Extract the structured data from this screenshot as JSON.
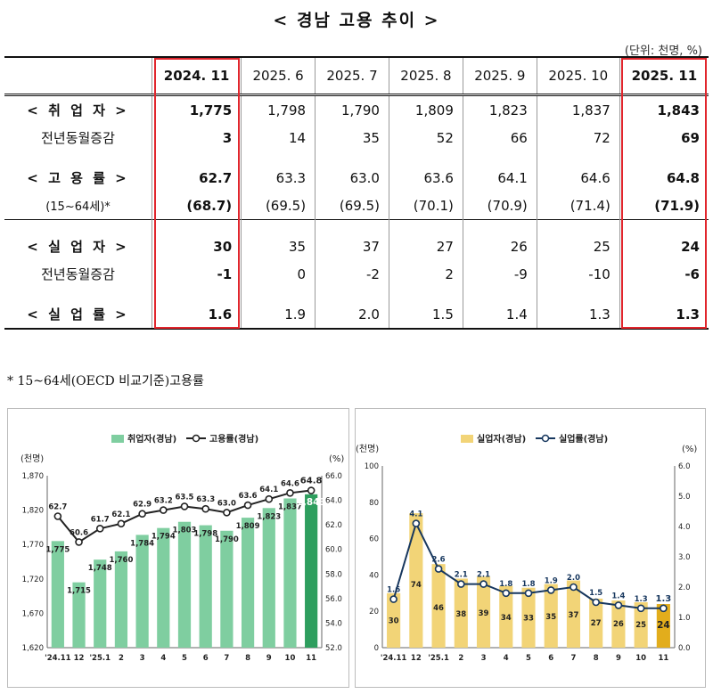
{
  "title": "< 경남 고용 추이 >",
  "unit": "(단위: 천명, %)",
  "table": {
    "columns": [
      "2024. 11",
      "2025. 6",
      "2025. 7",
      "2025. 8",
      "2025. 9",
      "2025. 10",
      "2025. 11"
    ],
    "rows": {
      "employed": {
        "label": "< 취 업 자 >",
        "values": [
          "1,775",
          "1,798",
          "1,790",
          "1,809",
          "1,823",
          "1,837",
          "1,843"
        ]
      },
      "employed_yoy": {
        "label": "전년동월증감",
        "values": [
          "3",
          "14",
          "35",
          "52",
          "66",
          "72",
          "69"
        ]
      },
      "emp_rate": {
        "label": "< 고 용 률 >",
        "values": [
          "62.7",
          "63.3",
          "63.0",
          "63.6",
          "64.1",
          "64.6",
          "64.8"
        ]
      },
      "oecd_rate": {
        "label": "(15~64세)*",
        "values": [
          "(68.7)",
          "(69.5)",
          "(69.5)",
          "(70.1)",
          "(70.9)",
          "(71.4)",
          "(71.9)"
        ]
      },
      "unemployed": {
        "label": "< 실 업 자 >",
        "values": [
          "30",
          "35",
          "37",
          "27",
          "26",
          "25",
          "24"
        ]
      },
      "unemployed_yoy": {
        "label": "전년동월증감",
        "values": [
          "-1",
          "0",
          "-2",
          "2",
          "-9",
          "-10",
          "-6"
        ]
      },
      "unemp_rate": {
        "label": "< 실 업 률 >",
        "values": [
          "1.6",
          "1.9",
          "2.0",
          "1.5",
          "1.4",
          "1.3",
          "1.3"
        ]
      }
    }
  },
  "footnote": "* 15~64세(OECD 비교기준)고용률",
  "colors": {
    "highlight": "#e1262d",
    "green_bar": "#7fcea0",
    "green_last": "#2e9e5e",
    "yellow_bar": "#f2d477",
    "yellow_last": "#e2ad1c",
    "line_dark": "#222222",
    "line_blue": "#17375e"
  },
  "chart_data": [
    {
      "type": "bar",
      "title": "",
      "legend": [
        "취업자(경남)",
        "고용률(경남)"
      ],
      "categories": [
        "'24.11",
        "12",
        "'25.1",
        "2",
        "3",
        "4",
        "5",
        "6",
        "7",
        "8",
        "9",
        "10",
        "11"
      ],
      "ylabel": "(천명)",
      "y2label": "(%)",
      "ylim": [
        1620,
        1870
      ],
      "yticks": [
        1620,
        1670,
        1720,
        1770,
        1820,
        1870
      ],
      "y2lim": [
        52.0,
        66.0
      ],
      "y2ticks": [
        52.0,
        54.0,
        56.0,
        58.0,
        60.0,
        62.0,
        64.0,
        66.0
      ],
      "series": [
        {
          "name": "취업자(경남)",
          "kind": "bar",
          "values": [
            1775,
            1715,
            1748,
            1760,
            1784,
            1794,
            1803,
            1798,
            1790,
            1809,
            1823,
            1837,
            1843
          ]
        },
        {
          "name": "고용률(경남)",
          "kind": "line",
          "axis": "right",
          "values": [
            62.7,
            60.6,
            61.7,
            62.1,
            62.9,
            63.2,
            63.5,
            63.3,
            63.0,
            63.6,
            64.1,
            64.6,
            64.8
          ]
        }
      ]
    },
    {
      "type": "bar",
      "title": "",
      "legend": [
        "실업자(경남)",
        "실업률(경남)"
      ],
      "categories": [
        "'24.11",
        "12",
        "'25.1",
        "2",
        "3",
        "4",
        "5",
        "6",
        "7",
        "8",
        "9",
        "10",
        "11"
      ],
      "ylabel": "(천명)",
      "y2label": "(%)",
      "ylim": [
        0,
        100
      ],
      "yticks": [
        0,
        20,
        40,
        60,
        80,
        100
      ],
      "y2lim": [
        0.0,
        6.0
      ],
      "y2ticks": [
        0.0,
        1.0,
        2.0,
        3.0,
        4.0,
        5.0,
        6.0
      ],
      "series": [
        {
          "name": "실업자(경남)",
          "kind": "bar",
          "values": [
            30,
            74,
            46,
            38,
            39,
            34,
            33,
            35,
            37,
            27,
            26,
            25,
            24
          ]
        },
        {
          "name": "실업률(경남)",
          "kind": "line",
          "axis": "right",
          "values": [
            1.6,
            4.1,
            2.6,
            2.1,
            2.1,
            1.8,
            1.8,
            1.9,
            2.0,
            1.5,
            1.4,
            1.3,
            1.3
          ]
        }
      ]
    }
  ]
}
